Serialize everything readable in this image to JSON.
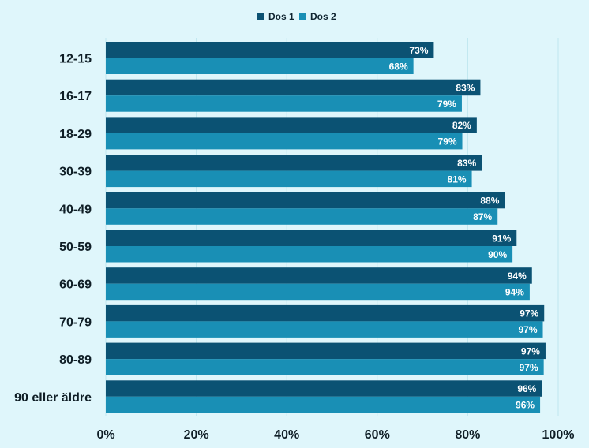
{
  "chart_data": {
    "type": "bar",
    "orientation": "horizontal",
    "categories": [
      "12-15",
      "16-17",
      "18-29",
      "30-39",
      "40-49",
      "50-59",
      "60-69",
      "70-79",
      "80-89",
      "90 eller äldre"
    ],
    "series": [
      {
        "name": "Dos 1",
        "color": "#0b5273",
        "values": [
          72.5,
          82.8,
          82.0,
          83.1,
          88.2,
          90.8,
          94.2,
          96.9,
          97.2,
          96.4
        ],
        "labels": [
          "73%",
          "83%",
          "82%",
          "83%",
          "88%",
          "91%",
          "94%",
          "97%",
          "97%",
          "96%"
        ]
      },
      {
        "name": "Dos 2",
        "color": "#198fb5",
        "values": [
          68.0,
          78.7,
          78.8,
          80.9,
          86.6,
          89.9,
          93.7,
          96.6,
          96.8,
          96.0
        ],
        "labels": [
          "68%",
          "79%",
          "79%",
          "81%",
          "87%",
          "90%",
          "94%",
          "97%",
          "97%",
          "96%"
        ]
      }
    ],
    "xlim": [
      0,
      100
    ],
    "xticks": [
      "0%",
      "20%",
      "40%",
      "60%",
      "80%",
      "100%"
    ],
    "grid": true,
    "legend_position": "top-center"
  }
}
